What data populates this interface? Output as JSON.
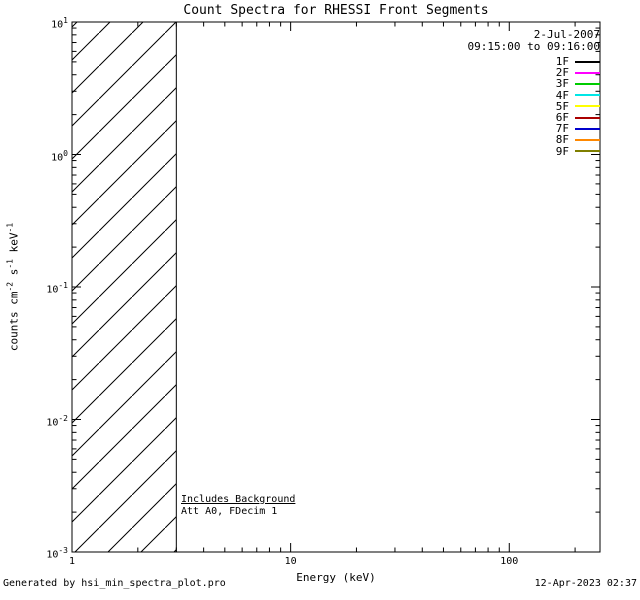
{
  "title": "Count Spectra for RHESSI Front Segments",
  "legend": {
    "date": "2-Jul-2007",
    "time_range": "09:15:00 to 09:16:00",
    "entries": [
      {
        "label": "1F",
        "color": "#000000"
      },
      {
        "label": "2F",
        "color": "#ff00ff"
      },
      {
        "label": "3F",
        "color": "#00cc00"
      },
      {
        "label": "4F",
        "color": "#00e6e6"
      },
      {
        "label": "5F",
        "color": "#ffff00"
      },
      {
        "label": "6F",
        "color": "#aa0000"
      },
      {
        "label": "7F",
        "color": "#0000cc"
      },
      {
        "label": "8F",
        "color": "#ff8800"
      },
      {
        "label": "9F",
        "color": "#7f7f00"
      }
    ]
  },
  "axes": {
    "x": {
      "label": "Energy (keV)",
      "scale": "log",
      "lim": [
        1,
        260
      ],
      "ticks": [
        {
          "label": "1",
          "value": 1
        },
        {
          "label": "10",
          "value": 10
        },
        {
          "label": "100",
          "value": 100
        }
      ]
    },
    "y": {
      "label_segments": [
        "counts cm",
        "-2",
        " s",
        "-1",
        " keV",
        "-1"
      ],
      "scale": "log",
      "lim": [
        0.001,
        10
      ],
      "ticks": [
        {
          "base": "10",
          "exp": "-3",
          "value": 0.001
        },
        {
          "base": "10",
          "exp": "-2",
          "value": 0.01
        },
        {
          "base": "10",
          "exp": "-1",
          "value": 0.1
        },
        {
          "base": "10",
          "exp": "0",
          "value": 1
        },
        {
          "base": "10",
          "exp": "1",
          "value": 10
        }
      ]
    }
  },
  "hatch_region": {
    "x_from": 1,
    "x_to": 3
  },
  "annotations": {
    "background_note": "Includes Background",
    "attenuator_note": "Att A0, FDecim 1"
  },
  "footer": {
    "left": "Generated by hsi_min_spectra_plot.pro",
    "right": "12-Apr-2023 02:37"
  },
  "chart_data": {
    "type": "line",
    "title": "Count Spectra for RHESSI Front Segments",
    "xlabel": "Energy (keV)",
    "ylabel": "counts cm^-2 s^-1 keV^-1",
    "x_scale": "log",
    "y_scale": "log",
    "xlim": [
      1,
      260
    ],
    "ylim": [
      0.001,
      10
    ],
    "grid": false,
    "legend_position": "top-right",
    "time_interval": "2-Jul-2007 09:15:00 to 09:16:00",
    "series": [
      {
        "name": "1F",
        "color": "#000000",
        "x": [],
        "y": []
      },
      {
        "name": "2F",
        "color": "#ff00ff",
        "x": [],
        "y": []
      },
      {
        "name": "3F",
        "color": "#00cc00",
        "x": [],
        "y": []
      },
      {
        "name": "4F",
        "color": "#00e6e6",
        "x": [],
        "y": []
      },
      {
        "name": "5F",
        "color": "#ffff00",
        "x": [],
        "y": []
      },
      {
        "name": "6F",
        "color": "#aa0000",
        "x": [],
        "y": []
      },
      {
        "name": "7F",
        "color": "#0000cc",
        "x": [],
        "y": []
      },
      {
        "name": "8F",
        "color": "#ff8800",
        "x": [],
        "y": []
      },
      {
        "name": "9F",
        "color": "#7f7f00",
        "x": [],
        "y": []
      }
    ],
    "hatched_region": {
      "x_from": 1,
      "x_to": 3,
      "style": "diagonal-hatch",
      "note": "No spectral curves are plotted; only the diagonally hatched low-energy region from 1 to 3 keV is drawn."
    },
    "annotations": [
      "Includes Background",
      "Att A0, FDecim 1"
    ]
  }
}
